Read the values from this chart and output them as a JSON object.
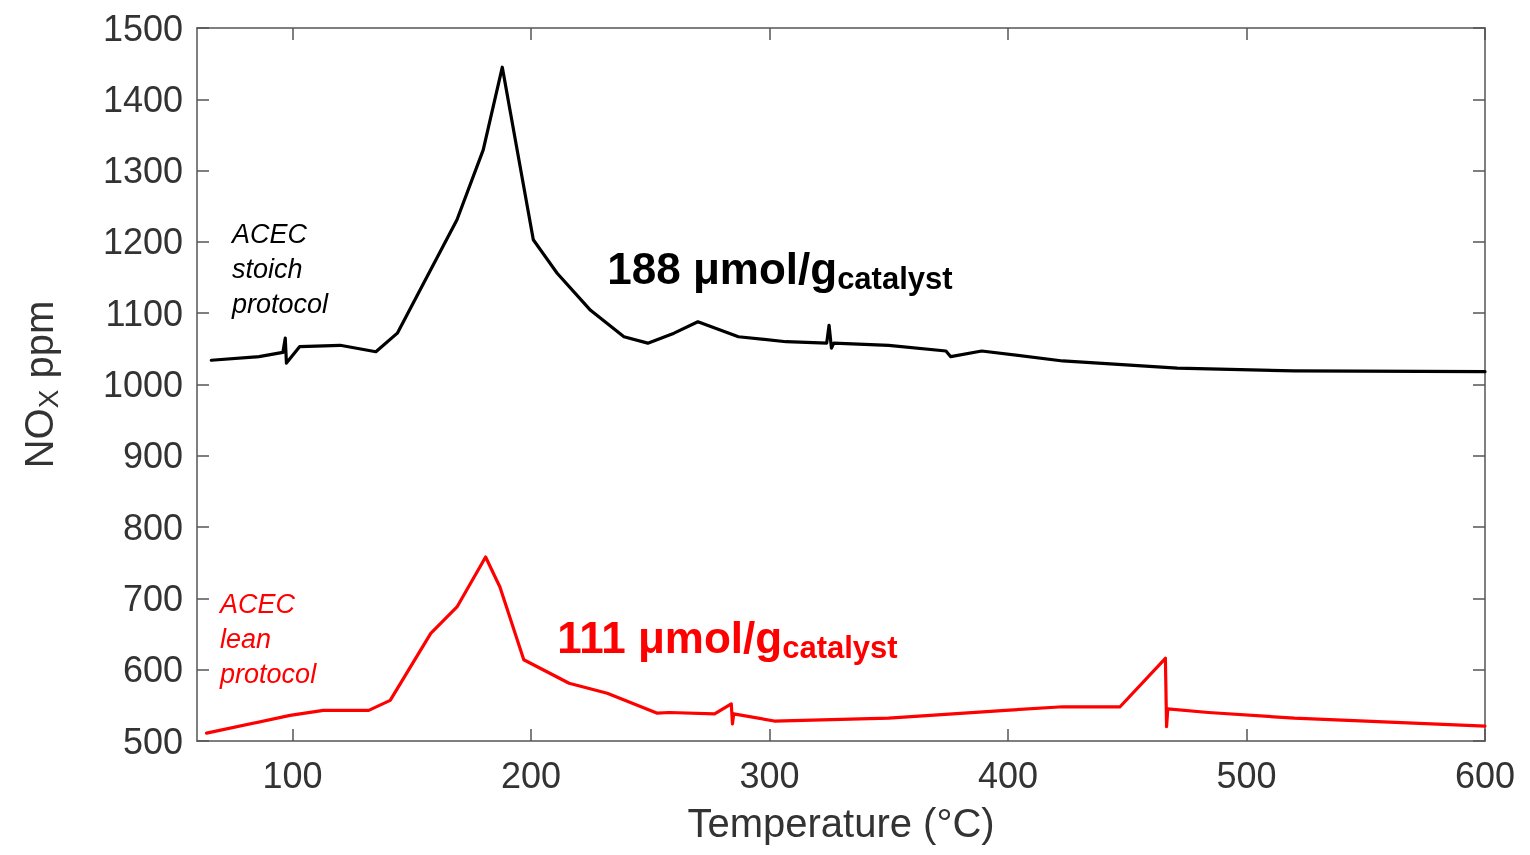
{
  "chart_data": {
    "type": "line",
    "xlabel": "Temperature (°C)",
    "ylabel": "NO$_{X}$ ppm",
    "xlim": [
      60,
      600
    ],
    "xticks": [
      100,
      200,
      300,
      400,
      500,
      600
    ],
    "ylim": [
      500,
      1500
    ],
    "yticks": [
      500,
      600,
      700,
      800,
      900,
      1000,
      1100,
      1200,
      1300,
      1400,
      1500
    ],
    "grid": false,
    "legend": false,
    "marker": "none",
    "line_style": "solid",
    "annotations": [
      "188 μmol/g$_{catalyst}$",
      "111 μmol/g$_{catalyst}$"
    ],
    "series": [
      {
        "name": "ACEC stoich protocol",
        "color": "#000000",
        "x": [
          66,
          86,
          96,
          97,
          97.5,
          103,
          120,
          135,
          144,
          155,
          169,
          180,
          188,
          194,
          201,
          211,
          225,
          239,
          249,
          260,
          270,
          287,
          307,
          324,
          325,
          326,
          327,
          350,
          374,
          376,
          389,
          423,
          471,
          520,
          600
        ],
        "values": [
          1034,
          1039,
          1045,
          1065,
          1030,
          1053,
          1055,
          1046,
          1072,
          1142,
          1231,
          1329,
          1445,
          1333,
          1203,
          1156,
          1104,
          1067,
          1058,
          1072,
          1088,
          1067,
          1060,
          1058,
          1083,
          1051,
          1058,
          1055,
          1047,
          1039,
          1047,
          1033,
          1023,
          1019,
          1018
        ]
      },
      {
        "name": "ACEC lean protocol",
        "color": "#ff0000",
        "x": [
          64,
          99,
          113,
          132,
          141,
          158,
          169,
          181,
          187,
          197,
          216,
          232,
          253,
          258,
          277,
          284,
          284.5,
          285,
          302,
          350,
          399,
          423,
          447,
          466,
          466.5,
          467,
          484,
          520,
          600
        ],
        "values": [
          511,
          536,
          543,
          543,
          557,
          651,
          688,
          758,
          716,
          614,
          581,
          567,
          539,
          540,
          538,
          552,
          524,
          538,
          528,
          532,
          543,
          548,
          548,
          616,
          520,
          545,
          540,
          532,
          521
        ]
      }
    ]
  }
}
